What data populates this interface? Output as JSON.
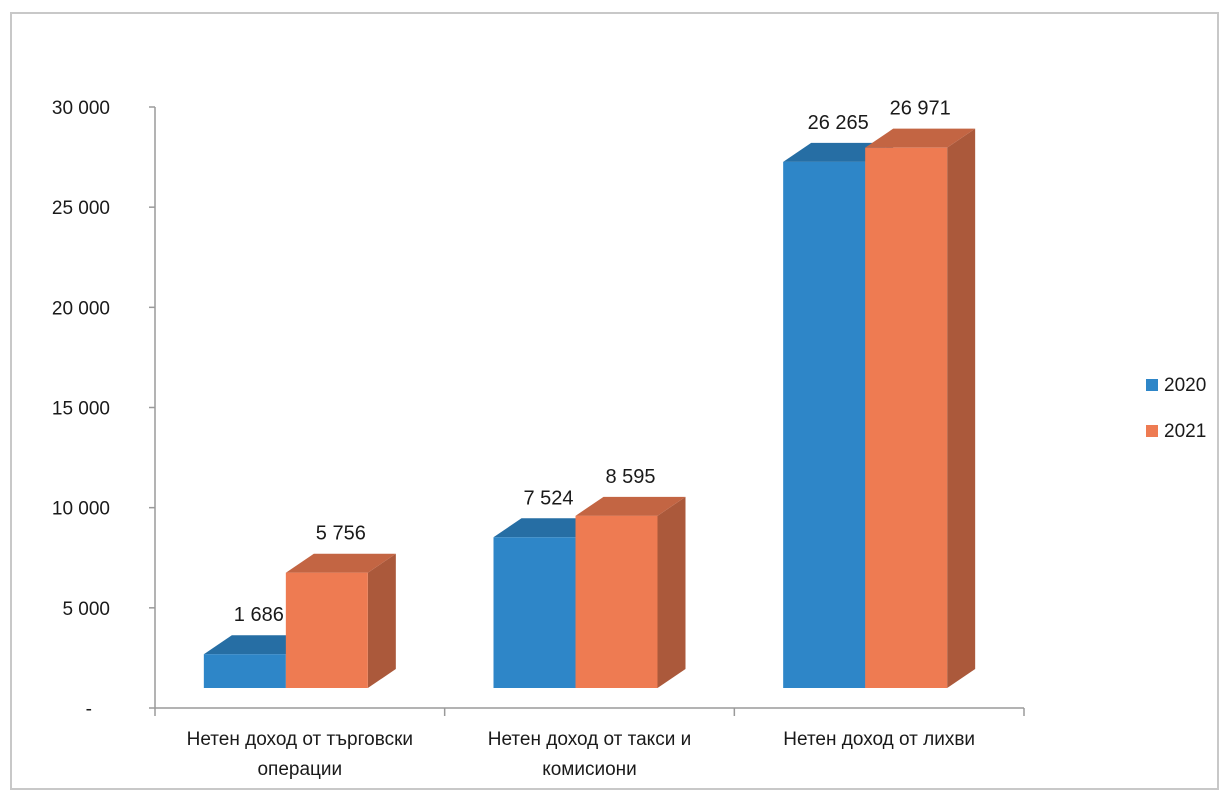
{
  "chart_data": {
    "type": "bar",
    "title": "",
    "xlabel": "",
    "ylabel": "",
    "ylim": [
      0,
      30000
    ],
    "y_ticks": [
      {
        "value": 0,
        "label": "-"
      },
      {
        "value": 5000,
        "label": "5 000"
      },
      {
        "value": 10000,
        "label": "10 000"
      },
      {
        "value": 15000,
        "label": "15 000"
      },
      {
        "value": 20000,
        "label": "20 000"
      },
      {
        "value": 25000,
        "label": "25 000"
      },
      {
        "value": 30000,
        "label": "30 000"
      }
    ],
    "categories": [
      [
        "Нетен доход от търговски",
        "операции"
      ],
      [
        "Нетен доход от такси и",
        "комисиони"
      ],
      [
        "Нетен доход от лихви"
      ]
    ],
    "series": [
      {
        "name": "2020",
        "color": "#2e86c8",
        "values": [
          1686,
          7524,
          26265
        ],
        "labels": [
          "1 686",
          "7 524",
          "26 265"
        ]
      },
      {
        "name": "2021",
        "color": "#ee7b52",
        "values": [
          5756,
          8595,
          26971
        ],
        "labels": [
          "5 756",
          "8 595",
          "26 971"
        ]
      }
    ],
    "legend_position": "right",
    "grid": false,
    "style": "3d-column"
  }
}
